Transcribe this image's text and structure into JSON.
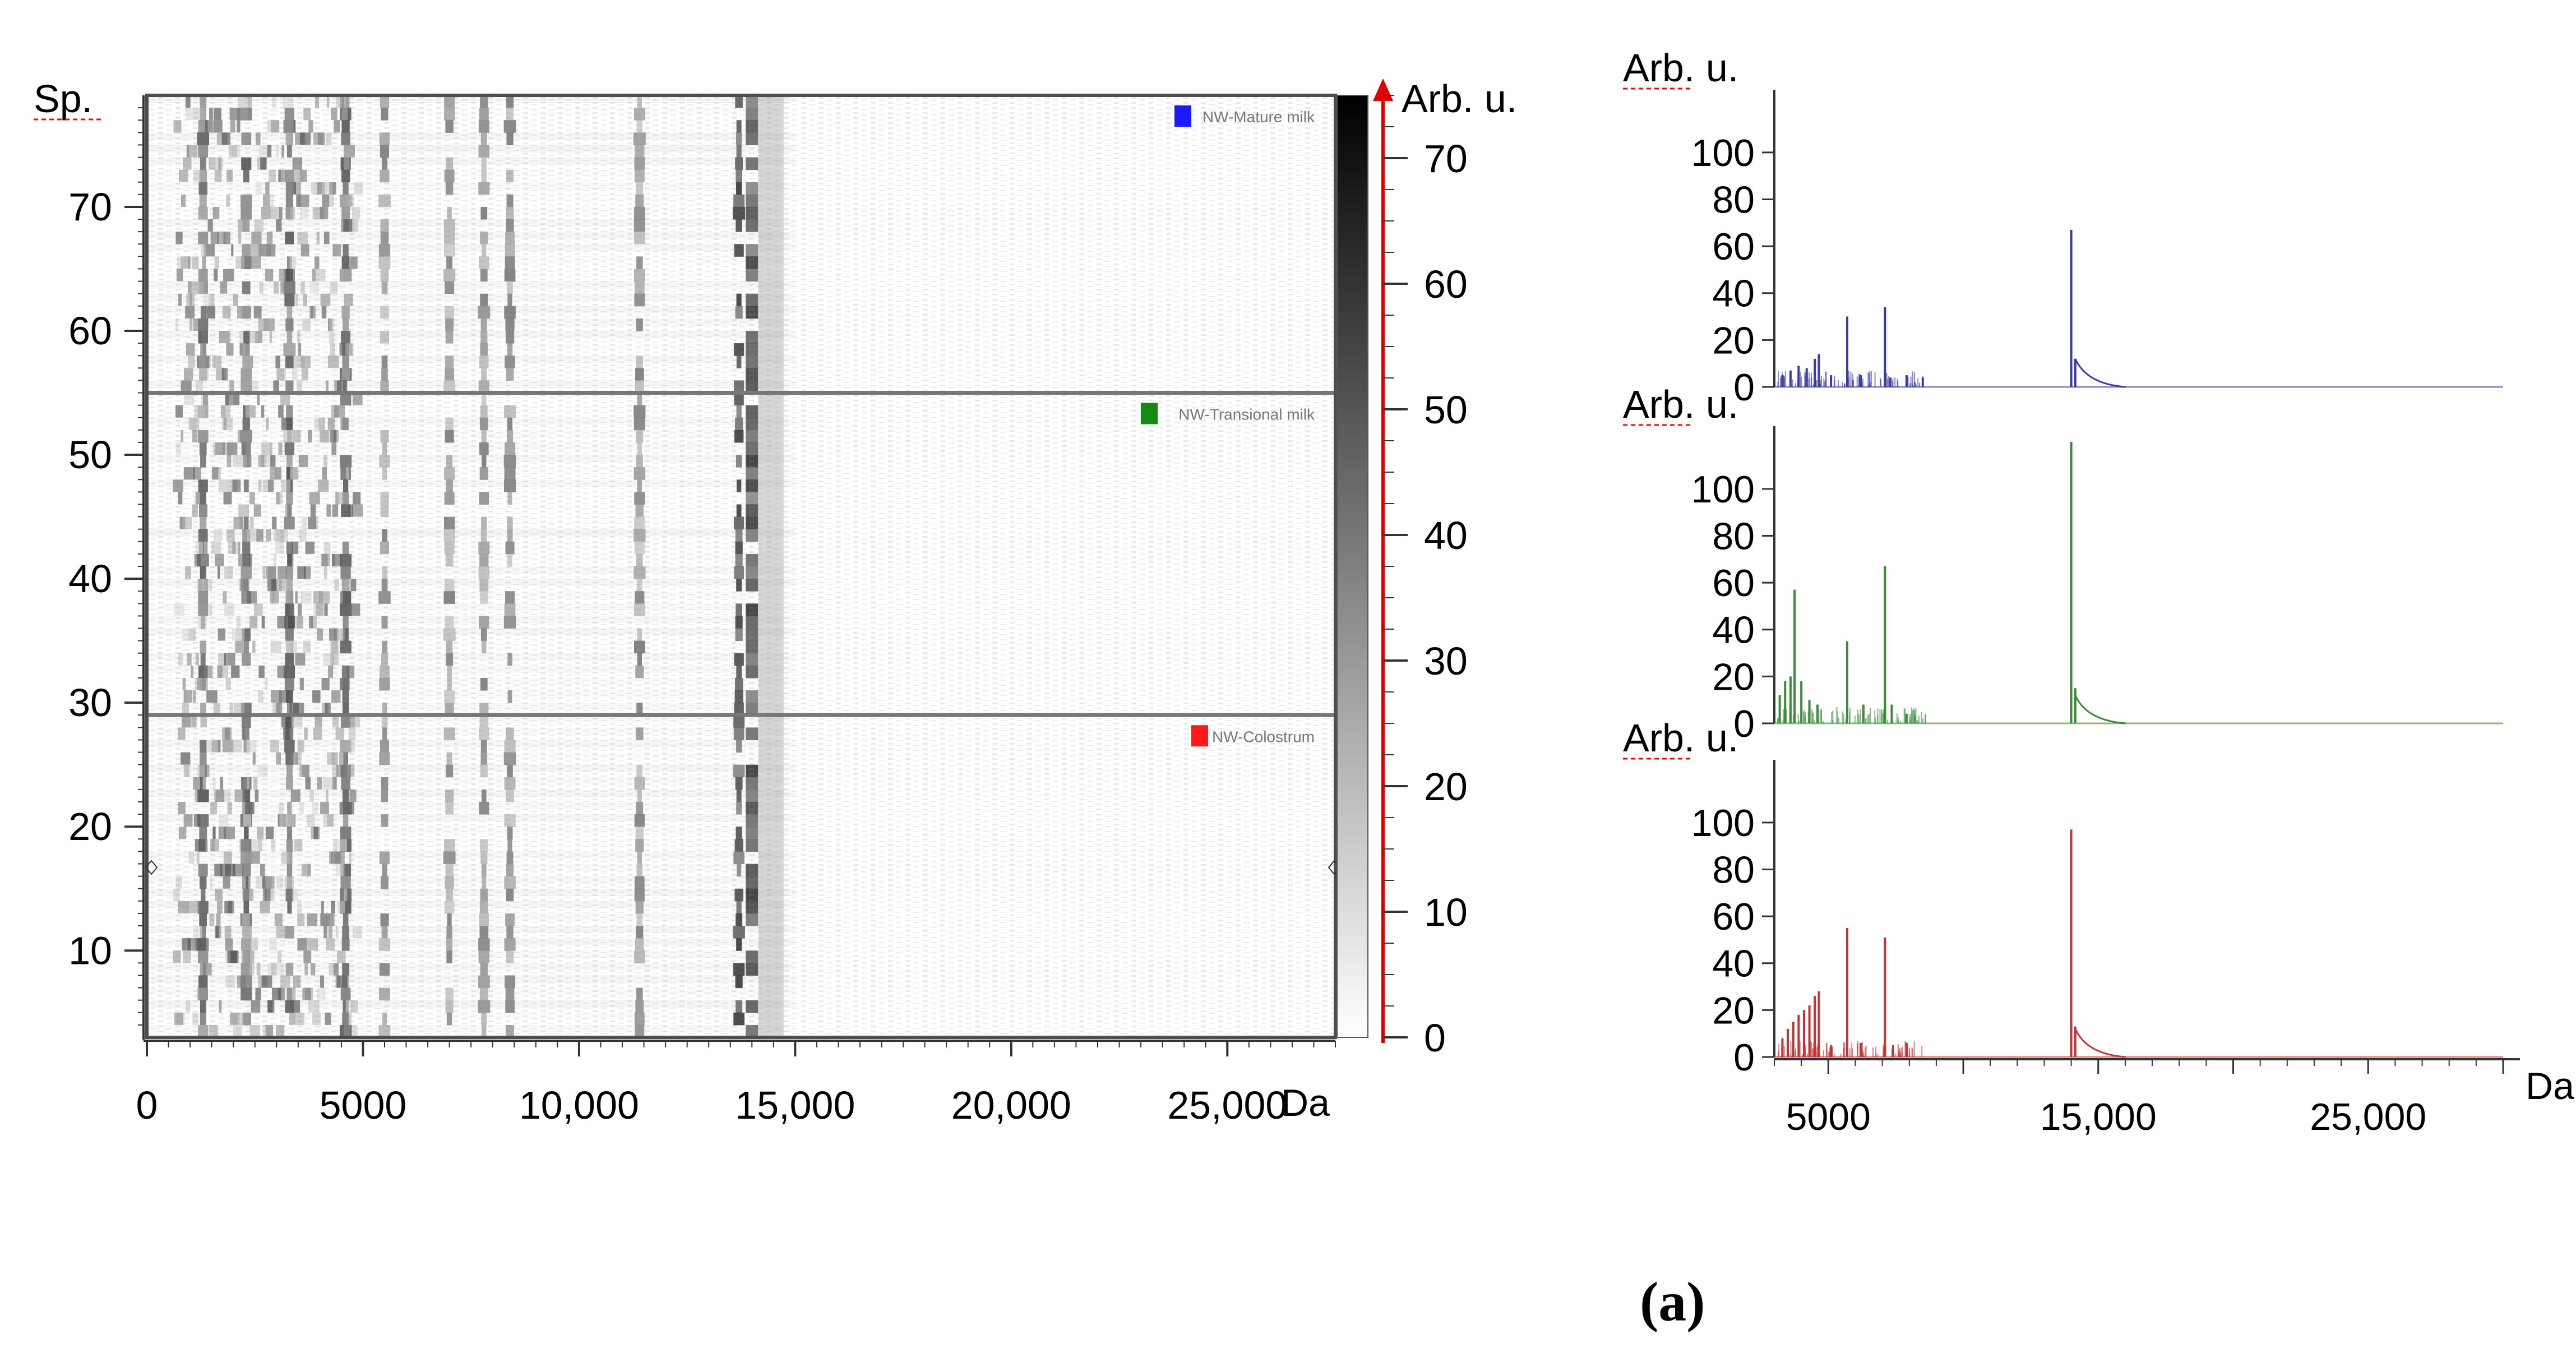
{
  "caption": "(a)",
  "heatmap": {
    "y_title": "Sp.",
    "x_unit": "Da",
    "colorbar_title": "Arb. u.",
    "x_ticks": [
      {
        "value": 0,
        "label": "0"
      },
      {
        "value": 5000,
        "label": "5000"
      },
      {
        "value": 10000,
        "label": "10,000"
      },
      {
        "value": 15000,
        "label": "15,000"
      },
      {
        "value": 20000,
        "label": "20,000"
      },
      {
        "value": 25000,
        "label": "25,000"
      }
    ],
    "y_ticks": [
      10,
      20,
      30,
      40,
      50,
      60,
      70
    ],
    "colorbar_ticks": [
      0,
      10,
      20,
      30,
      40,
      50,
      60,
      70
    ],
    "groups": [
      {
        "name": "NW-Mature milk",
        "color": "#1a1aff",
        "from": 55,
        "to": 79
      },
      {
        "name": "NW-Transional milk",
        "color": "#138a13",
        "from": 29,
        "to": 55
      },
      {
        "name": "NW-Colostrum",
        "color": "#ff1a1a",
        "from": 3,
        "to": 29
      }
    ]
  },
  "chart_data": [
    {
      "type": "heatmap",
      "title": "",
      "xlabel": "Da",
      "ylabel": "Sp.",
      "xlim": [
        0,
        27500
      ],
      "ylim": [
        3,
        79
      ],
      "colorbar": {
        "label": "Arb. u.",
        "range": [
          0,
          75
        ]
      },
      "series": [
        {
          "name": "NW-Mature milk",
          "spectra": [
            55,
            79
          ]
        },
        {
          "name": "NW-Transional milk",
          "spectra": [
            29,
            55
          ]
        },
        {
          "name": "NW-Colostrum",
          "spectra": [
            3,
            29
          ]
        }
      ],
      "intense_columns_da": [
        1300,
        2300,
        3300,
        4600,
        5500,
        7000,
        7800,
        8400,
        11400,
        13700,
        14000
      ]
    },
    {
      "type": "line",
      "name": "NW-Mature milk",
      "color": "#3a3aa6",
      "ylabel": "Arb. u.",
      "xlim": [
        3000,
        30000
      ],
      "ylim": [
        0,
        110
      ],
      "y_ticks": [
        0,
        20,
        40,
        60,
        80,
        100
      ],
      "peaks": [
        {
          "x": 3300,
          "y": 5
        },
        {
          "x": 3600,
          "y": 7
        },
        {
          "x": 3900,
          "y": 9
        },
        {
          "x": 4200,
          "y": 8
        },
        {
          "x": 4500,
          "y": 12
        },
        {
          "x": 4650,
          "y": 14
        },
        {
          "x": 5100,
          "y": 5
        },
        {
          "x": 5700,
          "y": 30
        },
        {
          "x": 6200,
          "y": 5
        },
        {
          "x": 7100,
          "y": 34
        },
        {
          "x": 7300,
          "y": 4
        },
        {
          "x": 7900,
          "y": 5
        },
        {
          "x": 8500,
          "y": 4
        },
        {
          "x": 14000,
          "y": 67
        },
        {
          "x": 14150,
          "y": 12
        }
      ]
    },
    {
      "type": "line",
      "name": "NW-Transional milk",
      "color": "#3a8a3a",
      "ylabel": "Arb. u.",
      "xlim": [
        3000,
        30000
      ],
      "ylim": [
        0,
        120
      ],
      "y_ticks": [
        0,
        20,
        40,
        60,
        80,
        100
      ],
      "peaks": [
        {
          "x": 3200,
          "y": 12
        },
        {
          "x": 3400,
          "y": 18
        },
        {
          "x": 3600,
          "y": 20
        },
        {
          "x": 3750,
          "y": 57
        },
        {
          "x": 4000,
          "y": 18
        },
        {
          "x": 4300,
          "y": 10
        },
        {
          "x": 4600,
          "y": 8
        },
        {
          "x": 5700,
          "y": 35
        },
        {
          "x": 6300,
          "y": 8
        },
        {
          "x": 7100,
          "y": 67
        },
        {
          "x": 7350,
          "y": 8
        },
        {
          "x": 7900,
          "y": 4
        },
        {
          "x": 14000,
          "y": 120
        },
        {
          "x": 14150,
          "y": 15
        }
      ]
    },
    {
      "type": "line",
      "name": "NW-Colostrum",
      "color": "#c03535",
      "ylabel": "Arb. u.",
      "xlim": [
        3000,
        30000
      ],
      "ylim": [
        0,
        110
      ],
      "x_ticks": [
        {
          "value": 5000,
          "label": "5000"
        },
        {
          "value": 15000,
          "label": "15,000"
        },
        {
          "value": 25000,
          "label": "25,000"
        }
      ],
      "xlabel": "Da",
      "y_ticks": [
        0,
        20,
        40,
        60,
        80,
        100
      ],
      "peaks": [
        {
          "x": 3300,
          "y": 8
        },
        {
          "x": 3500,
          "y": 12
        },
        {
          "x": 3700,
          "y": 15
        },
        {
          "x": 3900,
          "y": 18
        },
        {
          "x": 4100,
          "y": 20
        },
        {
          "x": 4300,
          "y": 22
        },
        {
          "x": 4500,
          "y": 26
        },
        {
          "x": 4650,
          "y": 28
        },
        {
          "x": 5100,
          "y": 5
        },
        {
          "x": 5700,
          "y": 55
        },
        {
          "x": 6200,
          "y": 6
        },
        {
          "x": 7100,
          "y": 51
        },
        {
          "x": 7400,
          "y": 5
        },
        {
          "x": 7900,
          "y": 6
        },
        {
          "x": 14000,
          "y": 97
        },
        {
          "x": 14150,
          "y": 13
        }
      ]
    }
  ]
}
